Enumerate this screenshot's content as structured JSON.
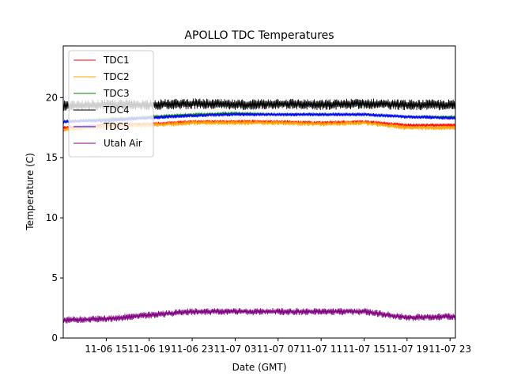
{
  "chart_data": {
    "type": "line",
    "title": "APOLLO TDC Temperatures",
    "xlabel": "Date (GMT)",
    "ylabel": "Temperature (C)",
    "x_unit": "hours since 2017-11-06 11:00 GMT",
    "xlim": [
      0,
      36.5
    ],
    "ylim": [
      0,
      24.3
    ],
    "yticks": [
      0,
      5,
      10,
      15,
      20
    ],
    "xticks": [
      {
        "value": 4,
        "label": "11-06 15"
      },
      {
        "value": 8,
        "label": "11-06 19"
      },
      {
        "value": 12,
        "label": "11-06 23"
      },
      {
        "value": 16,
        "label": "11-07 03"
      },
      {
        "value": 20,
        "label": "11-07 07"
      },
      {
        "value": 24,
        "label": "11-07 11"
      },
      {
        "value": 28,
        "label": "11-07 15"
      },
      {
        "value": 32,
        "label": "11-07 19"
      },
      {
        "value": 36,
        "label": "11-07 23"
      }
    ],
    "legend_position": "top-left",
    "series": [
      {
        "name": "TDC1",
        "color": "#ff0000",
        "x": [
          0,
          4,
          8,
          12,
          16,
          20,
          24,
          28,
          32,
          36.5
        ],
        "y": [
          17.5,
          17.7,
          17.8,
          18.0,
          18.0,
          18.0,
          17.9,
          18.0,
          17.7,
          17.7
        ],
        "noise": 0.15
      },
      {
        "name": "TDC2",
        "color": "#ffa500",
        "x": [
          0,
          4,
          8,
          12,
          16,
          20,
          24,
          28,
          32,
          36.5
        ],
        "y": [
          17.3,
          17.6,
          17.7,
          17.9,
          17.9,
          17.9,
          17.8,
          17.9,
          17.5,
          17.5
        ],
        "noise": 0.2
      },
      {
        "name": "TDC3",
        "color": "#008000",
        "x": [
          0,
          4,
          8,
          12,
          16,
          20,
          24,
          28,
          32,
          36.5
        ],
        "y": [
          18.0,
          18.2,
          18.4,
          18.6,
          18.7,
          18.6,
          18.6,
          18.6,
          18.4,
          18.4
        ],
        "noise": 0.1
      },
      {
        "name": "TDC4",
        "color": "#000000",
        "x": [
          0,
          4,
          8,
          12,
          16,
          20,
          24,
          28,
          32,
          36.5
        ],
        "y": [
          19.3,
          19.4,
          19.4,
          19.5,
          19.4,
          19.5,
          19.4,
          19.5,
          19.4,
          19.4
        ],
        "noise": 0.45
      },
      {
        "name": "TDC5",
        "color": "#0000ff",
        "x": [
          0,
          4,
          8,
          12,
          16,
          20,
          24,
          28,
          32,
          36.5
        ],
        "y": [
          18.0,
          18.1,
          18.3,
          18.5,
          18.6,
          18.6,
          18.6,
          18.6,
          18.4,
          18.3
        ],
        "noise": 0.15
      },
      {
        "name": "Utah Air",
        "color": "#800080",
        "x": [
          0,
          4,
          8,
          12,
          16,
          20,
          24,
          28,
          32,
          36.5
        ],
        "y": [
          1.5,
          1.6,
          1.9,
          2.2,
          2.2,
          2.2,
          2.2,
          2.2,
          1.7,
          1.8
        ],
        "noise": 0.3
      }
    ]
  }
}
